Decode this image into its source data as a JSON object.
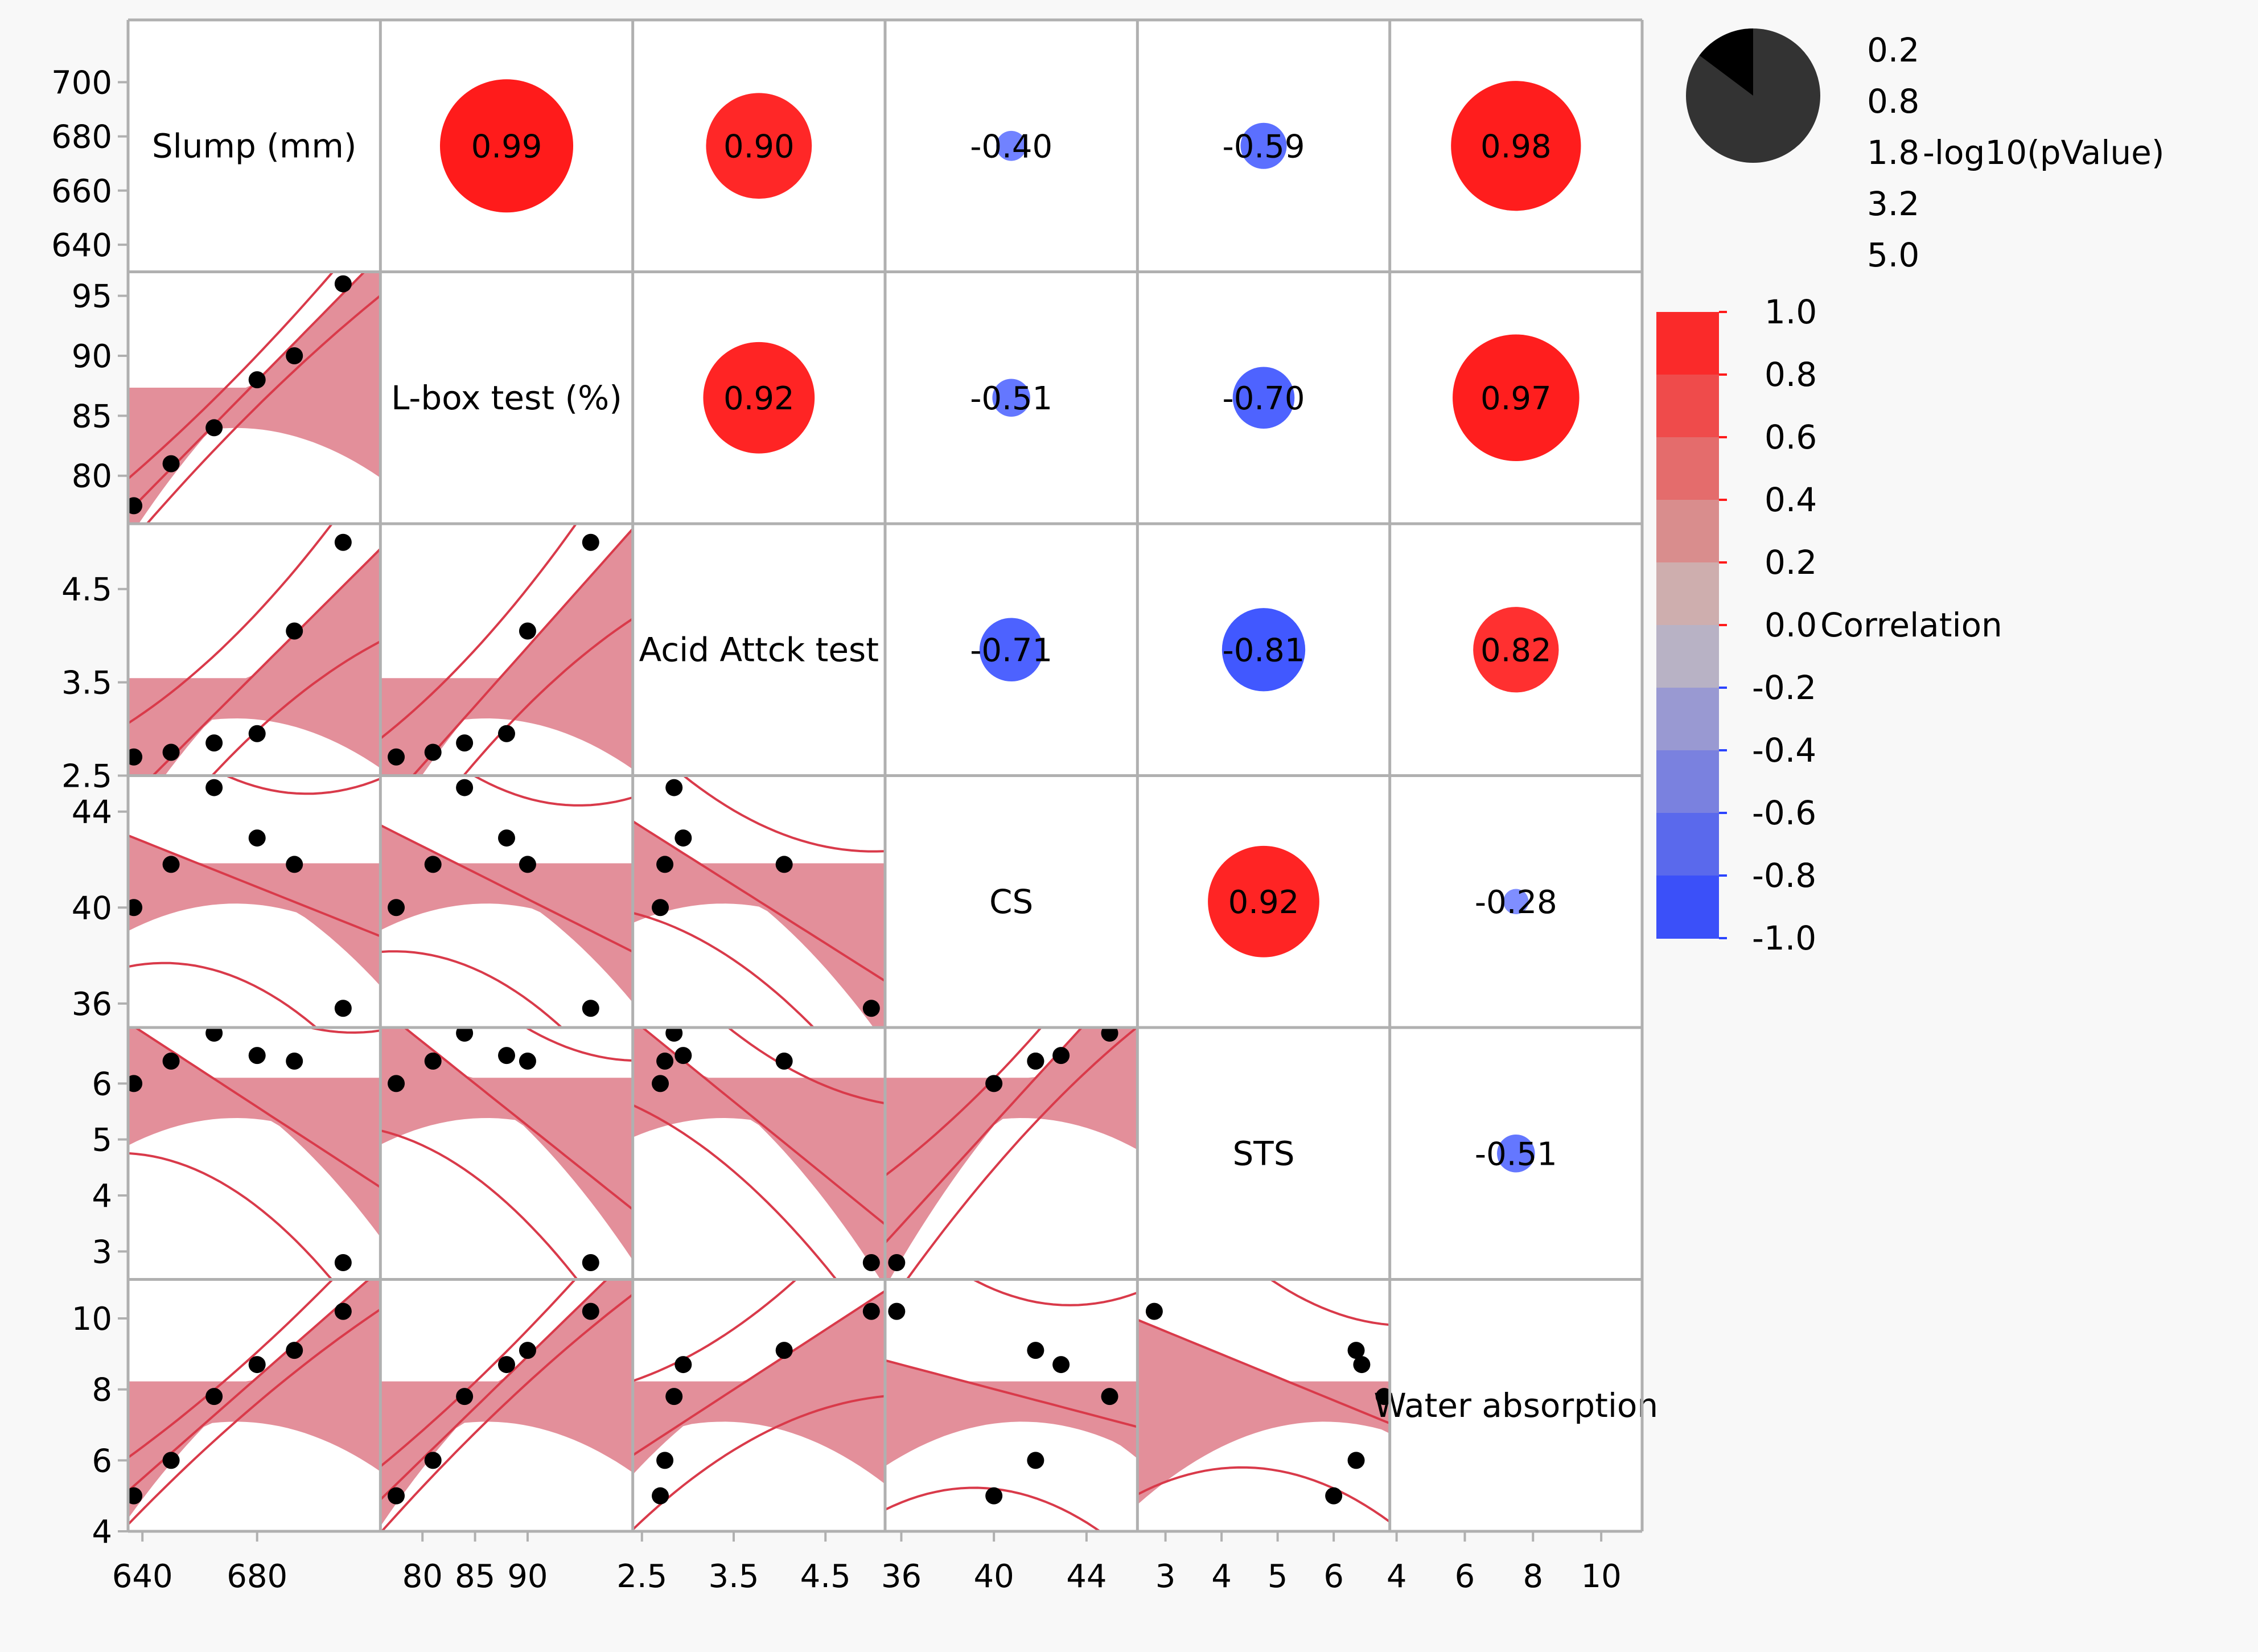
{
  "colors": {
    "background": "#f8f8f8",
    "panel_bg": "#ffffff",
    "grid": "#b0b0b0",
    "positive": "#ff1a1a",
    "negative": "#2b44ff",
    "fit": "#d93a4a",
    "band": "#d96a78",
    "point": "#000000"
  },
  "chart_data": {
    "type": "scatterplot-matrix",
    "variables": [
      {
        "key": "slump",
        "label": "Slump (mm)",
        "ticks": [
          640,
          660,
          680,
          700
        ],
        "ylim": [
          630,
          723
        ],
        "xticks": [
          640,
          680
        ],
        "xlim": [
          635,
          723
        ]
      },
      {
        "key": "lbox",
        "label": "L-box test (%)",
        "ticks": [
          80,
          85,
          90,
          95
        ],
        "ylim": [
          76,
          97
        ],
        "xticks": [
          80,
          85,
          90
        ],
        "xlim": [
          76,
          100
        ]
      },
      {
        "key": "acid",
        "label": "Acid Attck test",
        "ticks": [
          2.5,
          3.5,
          4.5
        ],
        "ylim": [
          2.5,
          5.2
        ],
        "xticks": [
          2.5,
          3.5,
          4.5
        ],
        "xlim": [
          2.4,
          5.15
        ]
      },
      {
        "key": "cs",
        "label": "CS",
        "ticks": [
          36,
          40,
          44
        ],
        "ylim": [
          35,
          45.5
        ],
        "xticks": [
          36,
          40,
          44
        ],
        "xlim": [
          35.3,
          46.2
        ]
      },
      {
        "key": "sts",
        "label": "STS",
        "ticks": [
          3,
          4,
          5,
          6
        ],
        "ylim": [
          2.5,
          7
        ],
        "xticks": [
          3,
          4,
          5,
          6
        ],
        "xlim": [
          2.5,
          7
        ]
      },
      {
        "key": "water",
        "label": "Water absorption",
        "ticks": [
          4,
          6,
          8,
          10
        ],
        "ylim": [
          4,
          11.1
        ],
        "xticks": [
          4,
          6,
          8,
          10
        ],
        "xlim": [
          3.8,
          11.2
        ]
      }
    ],
    "observations": {
      "slump": [
        637,
        650,
        665,
        680,
        693,
        710
      ],
      "lbox": [
        77.5,
        81,
        84,
        88,
        90,
        96
      ],
      "acid": [
        2.7,
        2.75,
        2.85,
        2.95,
        4.05,
        5.0
      ],
      "cs": [
        40,
        41.8,
        45,
        42.9,
        41.8,
        35.8
      ],
      "sts": [
        6,
        6.4,
        6.9,
        6.5,
        6.4,
        2.8
      ],
      "water": [
        5.0,
        6.0,
        7.8,
        8.7,
        9.1,
        10.2
      ]
    },
    "correlations": [
      {
        "row": 0,
        "col": 1,
        "r": 0.99,
        "label": "0.99"
      },
      {
        "row": 0,
        "col": 2,
        "r": 0.9,
        "label": "0.90"
      },
      {
        "row": 0,
        "col": 3,
        "r": -0.4,
        "label": "-0.40"
      },
      {
        "row": 0,
        "col": 4,
        "r": -0.59,
        "label": "-0.59"
      },
      {
        "row": 0,
        "col": 5,
        "r": 0.98,
        "label": "0.98"
      },
      {
        "row": 1,
        "col": 2,
        "r": 0.92,
        "label": "0.92"
      },
      {
        "row": 1,
        "col": 3,
        "r": -0.51,
        "label": "-0.51"
      },
      {
        "row": 1,
        "col": 4,
        "r": -0.7,
        "label": "-0.70"
      },
      {
        "row": 1,
        "col": 5,
        "r": 0.97,
        "label": "0.97"
      },
      {
        "row": 2,
        "col": 3,
        "r": -0.71,
        "label": "-0.71"
      },
      {
        "row": 2,
        "col": 4,
        "r": -0.81,
        "label": "-0.81"
      },
      {
        "row": 2,
        "col": 5,
        "r": 0.82,
        "label": "0.82"
      },
      {
        "row": 3,
        "col": 4,
        "r": 0.92,
        "label": "0.92"
      },
      {
        "row": 3,
        "col": 5,
        "r": -0.28,
        "label": "-0.28"
      },
      {
        "row": 4,
        "col": 5,
        "r": -0.51,
        "label": "-0.51"
      }
    ],
    "pvalue_legend": {
      "title": "-log10(pValue)",
      "values": [
        "0.2",
        "0.8",
        "1.8",
        "3.2",
        "5.0"
      ]
    },
    "correlation_legend": {
      "title": "Correlation",
      "values": [
        "1.0",
        "0.8",
        "0.6",
        "0.4",
        "0.2",
        "0.0",
        "-0.2",
        "-0.4",
        "-0.6",
        "-0.8",
        "-1.0"
      ]
    }
  }
}
